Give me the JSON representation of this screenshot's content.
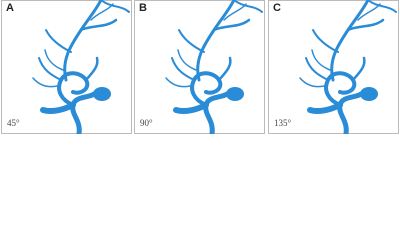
{
  "panels": [
    {
      "label": "A",
      "angle": "45°"
    },
    {
      "label": "B",
      "angle": "90°"
    },
    {
      "label": "C",
      "angle": "135°"
    }
  ]
}
